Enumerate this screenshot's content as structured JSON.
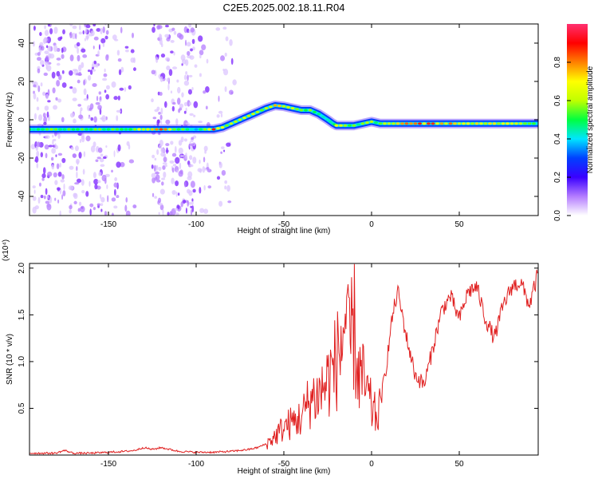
{
  "title": "C2E5.2025.002.18.11.R04",
  "chart_data": [
    {
      "type": "heatmap",
      "title": "C2E5.2025.002.18.11.R04",
      "xlabel": "Height of straight line (km)",
      "ylabel": "Frequency (Hz)",
      "xlim": [
        -195,
        95
      ],
      "ylim": [
        -50,
        50
      ],
      "xticks": [
        -150,
        -100,
        -50,
        0,
        50
      ],
      "yticks": [
        40,
        20,
        0,
        -20,
        -40
      ],
      "colorbar": {
        "label": "Normalized spectral amplitude",
        "range": [
          0,
          1
        ],
        "ticks": [
          0.0,
          0.2,
          0.4,
          0.6,
          0.8
        ],
        "tick_labels": [
          "0.0",
          "0.2",
          "0.4",
          "0.6",
          "0.8"
        ],
        "colors": [
          "#ffffff",
          "#b47cff",
          "#3a00ff",
          "#0040ff",
          "#00e5ff",
          "#00ff40",
          "#c0ff00",
          "#ffff00",
          "#ff8000",
          "#ff0000",
          "#ff3070"
        ]
      },
      "ridge": {
        "x": [
          -195,
          -180,
          -160,
          -140,
          -120,
          -100,
          -90,
          -85,
          -80,
          -75,
          -70,
          -65,
          -60,
          -55,
          -50,
          -45,
          -40,
          -35,
          -30,
          -25,
          -22,
          -20,
          -15,
          -10,
          -5,
          0,
          5,
          10,
          20,
          40,
          60,
          80,
          95
        ],
        "freq": [
          -5,
          -5,
          -5,
          -5,
          -5,
          -5,
          -5,
          -4,
          -2,
          0,
          2,
          4,
          6,
          7.5,
          7,
          6,
          5,
          5,
          3,
          0,
          -2,
          -3,
          -3,
          -3,
          -2,
          -1,
          -2,
          -2,
          -2,
          -2,
          -2,
          -2,
          -2
        ],
        "amplitude": [
          0.55,
          0.6,
          0.6,
          0.6,
          0.9,
          0.45,
          0.95,
          0.7,
          0.75,
          0.7,
          0.75,
          0.7,
          0.7,
          0.8,
          0.7,
          0.65,
          0.6,
          0.6,
          0.5,
          0.45,
          0.5,
          0.8,
          0.6,
          0.6,
          0.6,
          0.6,
          0.6,
          0.7,
          0.95,
          0.85,
          0.75,
          0.7,
          0.6
        ]
      }
    },
    {
      "type": "line",
      "xlabel": "Height of straight line (km)",
      "ylabel": "SNR (10 * v/v)",
      "y_multiplier": "(x10⁴)",
      "xlim": [
        -195,
        95
      ],
      "ylim": [
        0,
        2.05
      ],
      "xticks": [
        -150,
        -100,
        -50,
        0,
        50
      ],
      "yticks": [
        2.0,
        1.5,
        1.0,
        0.5
      ],
      "color": "#e02020",
      "x": [
        -195,
        -180,
        -175,
        -170,
        -160,
        -150,
        -140,
        -135,
        -130,
        -125,
        -120,
        -115,
        -110,
        -100,
        -90,
        -80,
        -70,
        -65,
        -60,
        -55,
        -50,
        -45,
        -40,
        -35,
        -30,
        -25,
        -20,
        -17,
        -15,
        -13,
        -10,
        -8,
        -5,
        0,
        3,
        5,
        8,
        10,
        12,
        15,
        17,
        20,
        25,
        30,
        35,
        40,
        45,
        50,
        55,
        60,
        65,
        70,
        75,
        80,
        85,
        90,
        95
      ],
      "y": [
        0.02,
        0.02,
        0.05,
        0.02,
        0.02,
        0.03,
        0.04,
        0.05,
        0.08,
        0.06,
        0.08,
        0.06,
        0.04,
        0.03,
        0.03,
        0.04,
        0.06,
        0.08,
        0.12,
        0.2,
        0.3,
        0.35,
        0.4,
        0.6,
        0.65,
        0.8,
        1.0,
        1.2,
        1.5,
        1.1,
        1.4,
        0.9,
        0.8,
        0.5,
        0.4,
        0.55,
        0.9,
        1.2,
        1.5,
        1.75,
        1.55,
        1.25,
        0.85,
        0.75,
        1.15,
        1.55,
        1.7,
        1.45,
        1.75,
        1.8,
        1.45,
        1.25,
        1.6,
        1.8,
        1.85,
        1.6,
        1.95
      ]
    }
  ]
}
